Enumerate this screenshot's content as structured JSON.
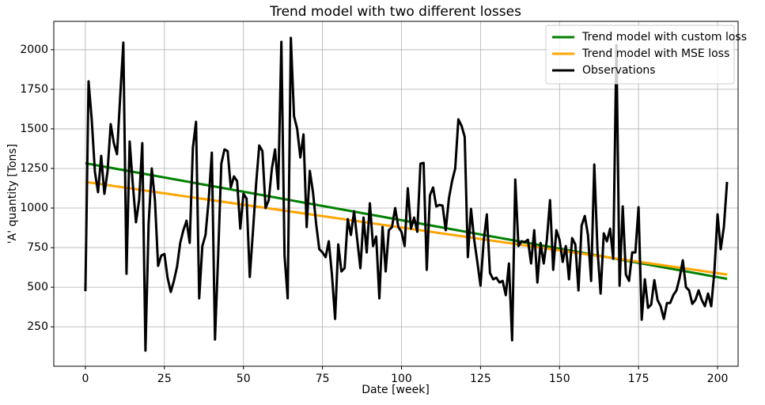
{
  "chart_data": {
    "type": "line",
    "title": "Trend model with two different losses",
    "x_label": "Date [week]",
    "y_label": "'A' quantity [Tons]",
    "xlim": [
      -10,
      206.5
    ],
    "ylim": [
      1,
      2179
    ],
    "xticks": [
      0,
      25,
      50,
      75,
      100,
      125,
      150,
      175,
      200
    ],
    "yticks": [
      250,
      500,
      750,
      1000,
      1250,
      1500,
      1750,
      2000
    ],
    "grid": true,
    "legend": "upper right",
    "series": [
      {
        "name": "Trend model with custom loss",
        "color": "#008000",
        "x": [
          0,
          203
        ],
        "values": [
          1283,
          553
        ]
      },
      {
        "name": "Trend model with MSE loss",
        "color": "#ffa500",
        "x": [
          0,
          203
        ],
        "values": [
          1165,
          580
        ]
      },
      {
        "name": "Observations",
        "color": "#000000",
        "x": [
          0,
          1,
          2,
          3,
          4,
          5,
          6,
          7,
          8,
          9,
          10,
          11,
          12,
          13,
          14,
          15,
          16,
          17,
          18,
          19,
          20,
          21,
          22,
          23,
          24,
          25,
          26,
          27,
          28,
          29,
          30,
          31,
          32,
          33,
          34,
          35,
          36,
          37,
          38,
          39,
          40,
          41,
          42,
          43,
          44,
          45,
          46,
          47,
          48,
          49,
          50,
          51,
          52,
          53,
          54,
          55,
          56,
          57,
          58,
          59,
          60,
          61,
          62,
          63,
          64,
          65,
          66,
          67,
          68,
          69,
          70,
          71,
          72,
          73,
          74,
          75,
          76,
          77,
          78,
          79,
          80,
          81,
          82,
          83,
          84,
          85,
          86,
          87,
          88,
          89,
          90,
          91,
          92,
          93,
          94,
          95,
          96,
          97,
          98,
          99,
          100,
          101,
          102,
          103,
          104,
          105,
          106,
          107,
          108,
          109,
          110,
          111,
          112,
          113,
          114,
          115,
          116,
          117,
          118,
          119,
          120,
          121,
          122,
          123,
          124,
          125,
          126,
          127,
          128,
          129,
          130,
          131,
          132,
          133,
          134,
          135,
          136,
          137,
          138,
          139,
          140,
          141,
          142,
          143,
          144,
          145,
          146,
          147,
          148,
          149,
          150,
          151,
          152,
          153,
          154,
          155,
          156,
          157,
          158,
          159,
          160,
          161,
          162,
          163,
          164,
          165,
          166,
          167,
          168,
          169,
          170,
          171,
          172,
          173,
          174,
          175,
          176,
          177,
          178,
          179,
          180,
          181,
          182,
          183,
          184,
          185,
          186,
          187,
          188,
          189,
          190,
          191,
          192,
          193,
          194,
          195,
          196,
          197,
          198,
          199,
          200,
          201,
          202,
          203
        ],
        "values": [
          475,
          1800,
          1560,
          1230,
          1100,
          1330,
          1090,
          1230,
          1530,
          1410,
          1340,
          1700,
          2045,
          585,
          1420,
          1150,
          910,
          1050,
          1410,
          100,
          900,
          1250,
          1050,
          635,
          700,
          710,
          560,
          470,
          540,
          630,
          780,
          860,
          920,
          780,
          1380,
          1545,
          430,
          760,
          830,
          1050,
          1350,
          170,
          700,
          1280,
          1370,
          1360,
          1130,
          1200,
          1170,
          870,
          1090,
          1060,
          565,
          850,
          1150,
          1395,
          1360,
          1000,
          1050,
          1250,
          1370,
          1120,
          2050,
          700,
          430,
          2075,
          1580,
          1500,
          1320,
          1465,
          880,
          1235,
          1100,
          900,
          740,
          720,
          690,
          790,
          580,
          300,
          770,
          600,
          620,
          930,
          830,
          980,
          800,
          620,
          940,
          720,
          1030,
          760,
          820,
          430,
          880,
          600,
          860,
          880,
          1000,
          880,
          850,
          760,
          1125,
          870,
          940,
          850,
          1280,
          1285,
          610,
          1080,
          1130,
          1010,
          1020,
          1015,
          860,
          1060,
          1170,
          1250,
          1560,
          1520,
          1450,
          690,
          995,
          800,
          660,
          510,
          790,
          960,
          590,
          550,
          560,
          530,
          540,
          450,
          650,
          165,
          1180,
          760,
          790,
          785,
          800,
          650,
          860,
          530,
          780,
          650,
          800,
          1050,
          610,
          860,
          800,
          660,
          760,
          550,
          810,
          770,
          480,
          890,
          950,
          830,
          540,
          1275,
          740,
          460,
          840,
          790,
          870,
          680,
          2030,
          510,
          1010,
          580,
          540,
          720,
          720,
          1005,
          295,
          550,
          370,
          390,
          545,
          420,
          380,
          300,
          400,
          400,
          450,
          480,
          560,
          670,
          500,
          480,
          395,
          420,
          480,
          420,
          380,
          460,
          380,
          600,
          960,
          740,
          880,
          1165
        ]
      }
    ]
  }
}
